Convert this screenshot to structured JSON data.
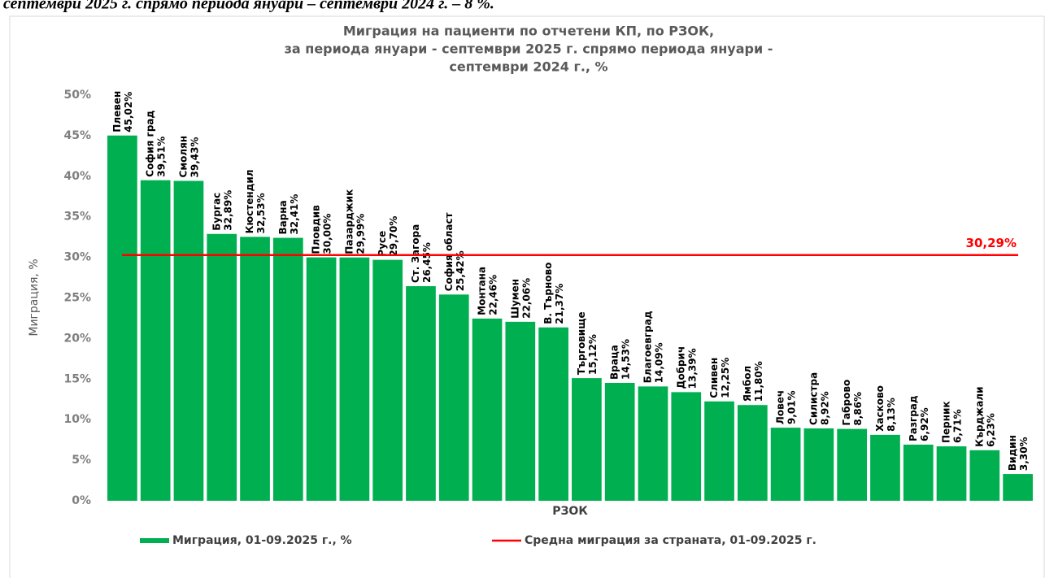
{
  "caption": "септември 2025 г. спрямо периода януари – септември 2024 г. – 8 %.",
  "chart_data": {
    "type": "bar",
    "title": [
      "Миграция на пациенти по отчетени КП, по РЗОК,",
      "за периода януари - септември 2025 г. спрямо периода януари -",
      "септември 2024 г., %"
    ],
    "x_label": "РЗОК",
    "y_label": "Миграция, %",
    "categories": [
      "Плевен",
      "София град",
      "Смолян",
      "Бургас",
      "Кюстендил",
      "Варна",
      "Пловдив",
      "Пазарджик",
      "Русе",
      "Ст. Загора",
      "София област",
      "Монтана",
      "Шумен",
      "В. Търново",
      "Търговище",
      "Враца",
      "Благоевград",
      "Добрич",
      "Сливен",
      "Ямбол",
      "Ловеч",
      "Силистра",
      "Габрово",
      "Хасково",
      "Разград",
      "Перник",
      "Кърджали",
      "Видин"
    ],
    "series": [
      {
        "name": "Миграция, 01-09.2025 г., %",
        "color": "#00b050",
        "values": [
          45.02,
          39.51,
          39.43,
          32.89,
          32.53,
          32.41,
          30.0,
          29.99,
          29.7,
          26.45,
          25.42,
          22.46,
          22.06,
          21.37,
          15.12,
          14.53,
          14.09,
          13.39,
          12.25,
          11.8,
          9.01,
          8.92,
          8.86,
          8.13,
          6.92,
          6.71,
          6.23,
          3.3
        ],
        "value_labels": [
          "45,02%",
          "39,51%",
          "39,43%",
          "32,89%",
          "32,53%",
          "32,41%",
          "30,00%",
          "29,99%",
          "29,70%",
          "26,45%",
          "25,42%",
          "22,46%",
          "22,06%",
          "21,37%",
          "15,12%",
          "14,53%",
          "14,09%",
          "13,39%",
          "12,25%",
          "11,80%",
          "9,01%",
          "8,92%",
          "8,86%",
          "8,13%",
          "6,92%",
          "6,71%",
          "6,23%",
          "3,30%"
        ]
      },
      {
        "name": "Средна миграция за страната, 01-09.2025 г.",
        "color": "#ff0000",
        "type": "line",
        "value": 30.29,
        "value_label": "30,29%"
      }
    ],
    "ylim": [
      0,
      50
    ],
    "yticks": [
      {
        "value": 0,
        "label": "0%"
      },
      {
        "value": 5,
        "label": "5%"
      },
      {
        "value": 10,
        "label": "10%"
      },
      {
        "value": 15,
        "label": "15%"
      },
      {
        "value": 20,
        "label": "20%"
      },
      {
        "value": 25,
        "label": "25%"
      },
      {
        "value": 30,
        "label": "30%"
      },
      {
        "value": 35,
        "label": "35%"
      },
      {
        "value": 40,
        "label": "40%"
      },
      {
        "value": 45,
        "label": "45%"
      },
      {
        "value": 50,
        "label": "50%"
      }
    ]
  }
}
